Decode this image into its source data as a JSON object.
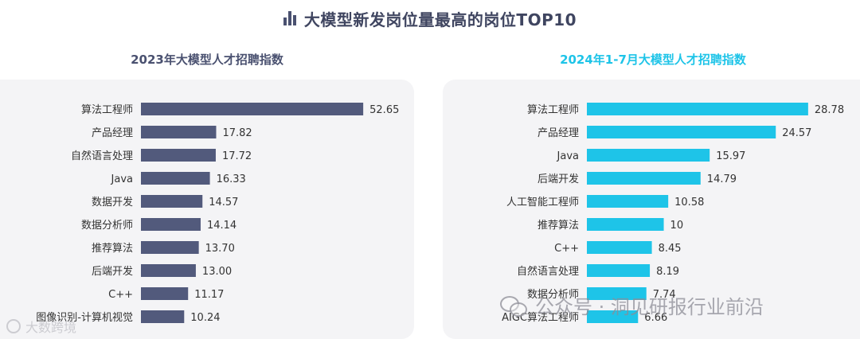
{
  "page": {
    "title": "大模型新发岗位量最高的岗位TOP10",
    "title_icon": "bar-chart-icon"
  },
  "watermarks": {
    "left": "大数跨境",
    "right": "公众号 · 洞见研报行业前沿",
    "right_icon": "wechat-icon"
  },
  "colors": {
    "left_bar": "#525a7c",
    "right_bar": "#1ec4e8",
    "right_title": "#1ec4e8",
    "panel_bg": "#f4f4f6"
  },
  "chart_data": [
    {
      "type": "bar",
      "orientation": "horizontal",
      "title": "2023年大模型人才招聘指数",
      "categories": [
        "算法工程师",
        "产品经理",
        "自然语言处理",
        "Java",
        "数据开发",
        "数据分析师",
        "推荐算法",
        "后端开发",
        "C++",
        "图像识别-计算机视觉"
      ],
      "values": [
        52.65,
        17.82,
        17.72,
        16.33,
        14.57,
        14.14,
        13.7,
        13.0,
        11.17,
        10.24
      ],
      "value_labels": [
        "52.65",
        "17.82",
        "17.72",
        "16.33",
        "14.57",
        "14.14",
        "13.70",
        "13.00",
        "11.17",
        "10.24"
      ],
      "color": "#525a7c",
      "xlim": [
        0,
        53
      ]
    },
    {
      "type": "bar",
      "orientation": "horizontal",
      "title": "2024年1-7月大模型人才招聘指数",
      "categories": [
        "算法工程师",
        "产品经理",
        "Java",
        "后端开发",
        "人工智能工程师",
        "推荐算法",
        "C++",
        "自然语言处理",
        "数据分析师",
        "AIGC算法工程师"
      ],
      "values": [
        28.78,
        24.57,
        15.97,
        14.79,
        10.58,
        10,
        8.45,
        8.19,
        7.74,
        6.66
      ],
      "value_labels": [
        "28.78",
        "24.57",
        "15.97",
        "14.79",
        "10.58",
        "10",
        "8.45",
        "8.19",
        "7.74",
        "6.66"
      ],
      "color": "#1ec4e8",
      "xlim": [
        0,
        29
      ]
    }
  ]
}
